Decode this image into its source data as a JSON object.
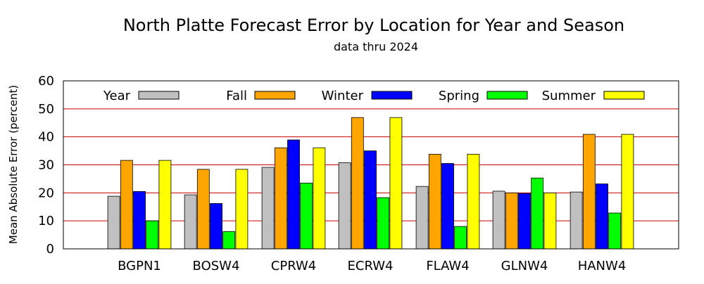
{
  "chart_data": {
    "type": "bar",
    "title": "North Platte Forecast Error by Location for Year and Season",
    "subtitle": "data thru 2024",
    "xlabel": "",
    "ylabel": "Mean Absolute Error (percent)",
    "ylim": [
      0,
      60
    ],
    "yticks": [
      0,
      10,
      20,
      30,
      40,
      50,
      60
    ],
    "grid": "horizontal",
    "legend_position": "top",
    "categories": [
      "BGPN1",
      "BOSW4",
      "CPRW4",
      "ECRW4",
      "FLAW4",
      "GLNW4",
      "HANW4"
    ],
    "series": [
      {
        "name": "Year",
        "color": "#c0c0c0",
        "values": [
          18.8,
          19.3,
          29.1,
          30.8,
          22.3,
          20.6,
          20.3
        ]
      },
      {
        "name": "Fall",
        "color": "#ffa500",
        "values": [
          31.6,
          28.4,
          36.1,
          46.9,
          33.8,
          20.0,
          40.9
        ]
      },
      {
        "name": "Winter",
        "color": "#0000ff",
        "values": [
          20.5,
          16.2,
          38.9,
          35.0,
          30.5,
          19.8,
          23.2
        ]
      },
      {
        "name": "Spring",
        "color": "#00ff00",
        "values": [
          10.0,
          6.2,
          23.5,
          18.3,
          8.0,
          25.3,
          12.8
        ]
      },
      {
        "name": "Summer",
        "color": "#ffff00",
        "values": [
          31.6,
          28.4,
          36.1,
          46.9,
          33.8,
          20.0,
          40.9
        ]
      }
    ],
    "grid_color": "#cc0000"
  }
}
